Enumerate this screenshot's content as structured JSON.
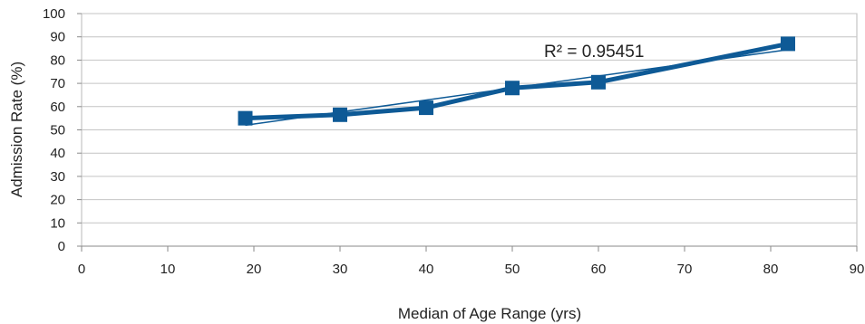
{
  "chart_data": {
    "type": "line",
    "title": "",
    "xlabel": "Median of Age Range (yrs)",
    "ylabel": "Admission Rate (%)",
    "xlim": [
      0,
      90
    ],
    "ylim": [
      0,
      100
    ],
    "xticks": [
      0,
      10,
      20,
      30,
      40,
      50,
      60,
      70,
      80,
      90
    ],
    "yticks": [
      0,
      10,
      20,
      30,
      40,
      50,
      60,
      70,
      80,
      90,
      100
    ],
    "grid": true,
    "legend": "none",
    "series": [
      {
        "x": [
          19,
          30,
          40,
          50,
          60,
          82
        ],
        "y": [
          55,
          56.5,
          59.5,
          68,
          70.5,
          87
        ],
        "color": "#0e5a96",
        "marker": "square"
      }
    ],
    "trendline": {
      "color": "#0e5a96",
      "x": [
        19,
        82
      ],
      "y": [
        52,
        84.5
      ]
    },
    "annotations": [
      {
        "text": "R² = 0.95451",
        "x": 54,
        "y": 82
      }
    ]
  }
}
